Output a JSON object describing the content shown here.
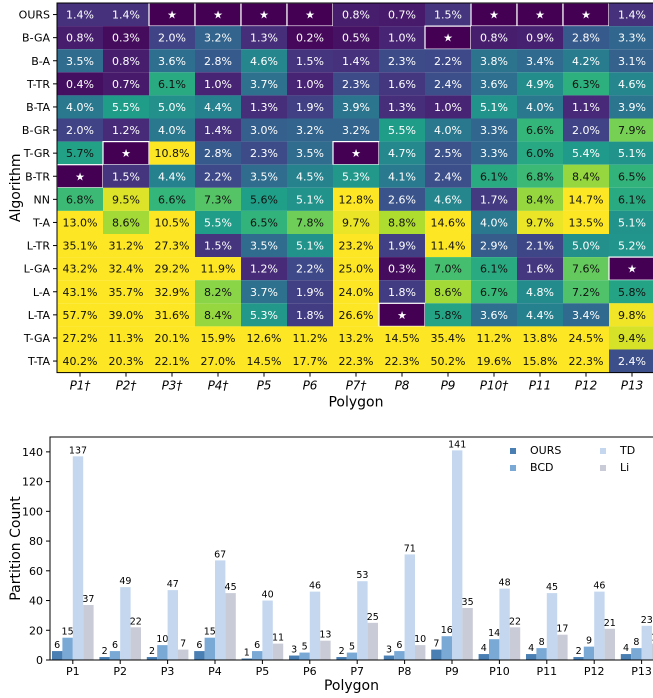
{
  "chart_data": [
    {
      "type": "heatmap",
      "xlabel": "Polygon",
      "ylabel": "Algorithm",
      "x_categories": [
        "P1†",
        "P2†",
        "P3†",
        "P4†",
        "P5",
        "P6",
        "P7†",
        "P8",
        "P9",
        "P10†",
        "P11",
        "P12",
        "P13"
      ],
      "y_categories": [
        "OURS",
        "B-GA",
        "B-A",
        "T-TR",
        "B-TA",
        "B-GR",
        "T-GR",
        "B-TR",
        "NN",
        "T-A",
        "L-TR",
        "L-GA",
        "L-A",
        "L-TA",
        "T-GA",
        "T-TA"
      ],
      "best_marker": "★",
      "cells": [
        [
          "1.4%",
          "1.4%",
          "★",
          "★",
          "★",
          "★",
          "0.8%",
          "0.7%",
          "1.5%",
          "★",
          "★",
          "★",
          "1.4%"
        ],
        [
          "0.8%",
          "0.3%",
          "2.0%",
          "3.2%",
          "1.3%",
          "0.2%",
          "0.5%",
          "1.0%",
          "★",
          "0.8%",
          "0.9%",
          "2.8%",
          "3.3%"
        ],
        [
          "3.5%",
          "0.8%",
          "3.6%",
          "2.8%",
          "4.6%",
          "1.5%",
          "1.4%",
          "2.3%",
          "2.2%",
          "3.8%",
          "3.4%",
          "4.2%",
          "3.1%"
        ],
        [
          "0.4%",
          "0.7%",
          "6.1%",
          "1.0%",
          "3.7%",
          "1.0%",
          "2.3%",
          "1.6%",
          "2.4%",
          "3.6%",
          "4.9%",
          "6.3%",
          "4.6%"
        ],
        [
          "4.0%",
          "5.5%",
          "5.0%",
          "4.4%",
          "1.3%",
          "1.9%",
          "3.9%",
          "1.3%",
          "1.0%",
          "5.1%",
          "4.0%",
          "1.1%",
          "3.9%"
        ],
        [
          "2.0%",
          "1.2%",
          "4.0%",
          "1.4%",
          "3.0%",
          "3.2%",
          "3.2%",
          "5.5%",
          "4.0%",
          "3.3%",
          "6.6%",
          "2.0%",
          "7.9%"
        ],
        [
          "5.7%",
          "★",
          "10.8%",
          "2.8%",
          "2.3%",
          "3.5%",
          "★",
          "4.7%",
          "2.5%",
          "3.3%",
          "6.0%",
          "5.4%",
          "5.1%"
        ],
        [
          "★",
          "1.5%",
          "4.4%",
          "2.2%",
          "3.5%",
          "4.5%",
          "5.3%",
          "4.1%",
          "2.4%",
          "6.1%",
          "6.8%",
          "8.4%",
          "6.5%"
        ],
        [
          "6.8%",
          "9.5%",
          "6.6%",
          "7.3%",
          "5.6%",
          "5.1%",
          "12.8%",
          "2.6%",
          "4.6%",
          "1.7%",
          "8.4%",
          "14.7%",
          "6.1%"
        ],
        [
          "13.0%",
          "8.6%",
          "10.5%",
          "5.5%",
          "6.5%",
          "7.8%",
          "9.7%",
          "8.8%",
          "14.6%",
          "4.0%",
          "9.7%",
          "13.5%",
          "5.1%"
        ],
        [
          "35.1%",
          "31.2%",
          "27.3%",
          "1.5%",
          "3.5%",
          "5.1%",
          "23.2%",
          "1.9%",
          "11.4%",
          "2.9%",
          "2.1%",
          "5.0%",
          "5.2%"
        ],
        [
          "43.2%",
          "32.4%",
          "29.2%",
          "11.9%",
          "1.2%",
          "2.2%",
          "25.0%",
          "0.3%",
          "7.0%",
          "6.1%",
          "1.6%",
          "7.6%",
          "★"
        ],
        [
          "43.1%",
          "35.7%",
          "32.9%",
          "8.2%",
          "3.7%",
          "1.9%",
          "24.0%",
          "1.8%",
          "8.6%",
          "6.7%",
          "4.8%",
          "7.2%",
          "5.8%"
        ],
        [
          "57.7%",
          "39.0%",
          "31.6%",
          "8.4%",
          "5.3%",
          "1.8%",
          "26.6%",
          "★",
          "5.8%",
          "3.6%",
          "4.4%",
          "3.4%",
          "9.8%"
        ],
        [
          "27.2%",
          "11.3%",
          "20.1%",
          "15.9%",
          "12.6%",
          "11.2%",
          "13.2%",
          "14.5%",
          "35.4%",
          "11.2%",
          "13.8%",
          "24.5%",
          "9.4%"
        ],
        [
          "40.2%",
          "20.3%",
          "22.1%",
          "27.0%",
          "14.5%",
          "17.7%",
          "22.3%",
          "22.3%",
          "50.2%",
          "19.6%",
          "15.8%",
          "22.3%",
          "2.4%"
        ]
      ]
    },
    {
      "type": "bar",
      "xlabel": "Polygon",
      "ylabel": "Partition Count",
      "categories": [
        "P1",
        "P2",
        "P3",
        "P4",
        "P5",
        "P6",
        "P7",
        "P8",
        "P9",
        "P10",
        "P11",
        "P12",
        "P13"
      ],
      "ylim": [
        0,
        150
      ],
      "yticks": [
        0,
        20,
        40,
        60,
        80,
        100,
        120,
        140
      ],
      "legend_position": "top-right",
      "series": [
        {
          "name": "OURS",
          "color": "#4a7fb3",
          "values": [
            6,
            2,
            2,
            6,
            1,
            3,
            2,
            3,
            7,
            4,
            4,
            2,
            4
          ]
        },
        {
          "name": "BCD",
          "color": "#7aa9d6",
          "values": [
            15,
            6,
            10,
            15,
            6,
            5,
            5,
            6,
            16,
            14,
            8,
            9,
            8
          ]
        },
        {
          "name": "TD",
          "color": "#c4d7ee",
          "values": [
            137,
            49,
            47,
            67,
            40,
            46,
            53,
            71,
            141,
            48,
            45,
            46,
            23
          ]
        },
        {
          "name": "Li",
          "color": "#c9cbd6",
          "values": [
            37,
            22,
            7,
            45,
            11,
            13,
            25,
            10,
            35,
            22,
            17,
            21,
            11
          ]
        }
      ]
    }
  ]
}
